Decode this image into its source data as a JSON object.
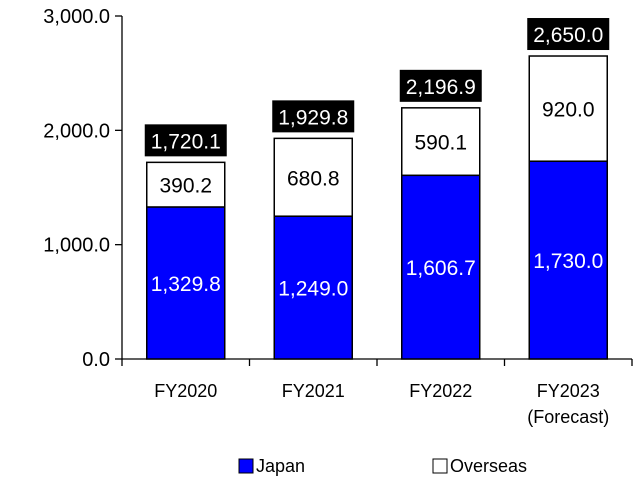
{
  "chart_data": {
    "type": "bar",
    "stacked": true,
    "title": "",
    "xlabel": "",
    "ylabel": "",
    "ylim": [
      0,
      3000
    ],
    "y_ticks": [
      "0.0",
      "1,000.0",
      "2,000.0",
      "3,000.0"
    ],
    "categories": [
      [
        "FY2020"
      ],
      [
        "FY2021"
      ],
      [
        "FY2022"
      ],
      [
        "FY2023",
        "(Forecast)"
      ]
    ],
    "series": [
      {
        "name": "Japan",
        "values": [
          1329.8,
          1249.0,
          1606.7,
          1730.0
        ],
        "labels": [
          "1,329.8",
          "1,249.0",
          "1,606.7",
          "1,730.0"
        ],
        "color": "#0000ff"
      },
      {
        "name": "Overseas",
        "values": [
          390.2,
          680.8,
          590.1,
          920.0
        ],
        "labels": [
          "390.2",
          "680.8",
          "590.1",
          "920.0"
        ],
        "color": "#ffffff"
      }
    ],
    "totals": [
      1720.1,
      1929.8,
      2196.9,
      2650.0
    ],
    "total_labels": [
      "1,720.1",
      "1,929.8",
      "2,196.9",
      "2,650.0"
    ],
    "total_label_style": "white-on-black",
    "grid": false,
    "legend_position": "bottom"
  }
}
